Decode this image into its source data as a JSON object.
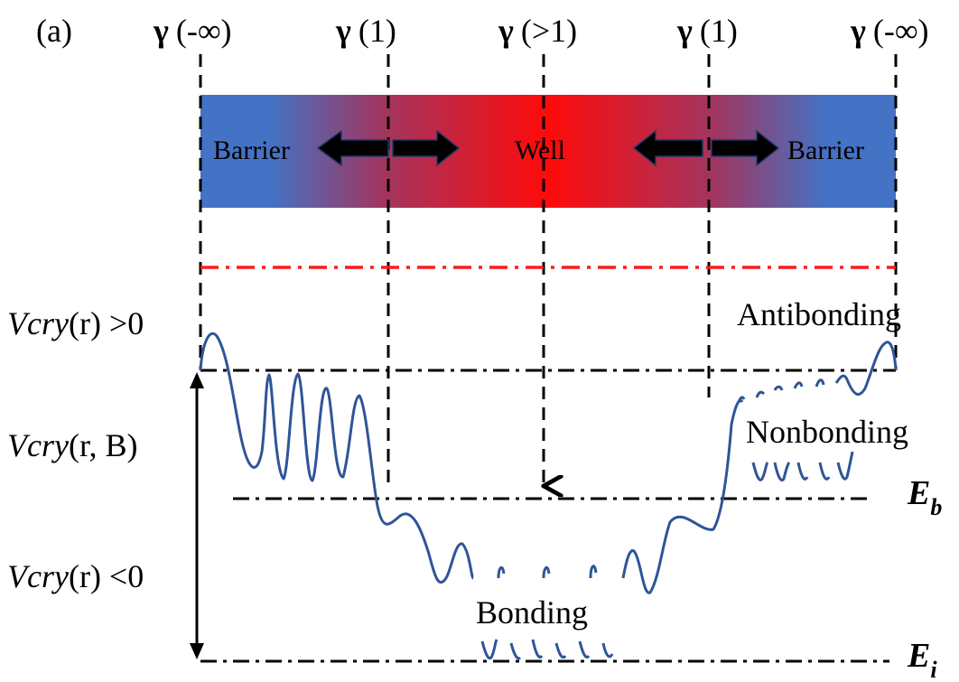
{
  "panel_label": "(a)",
  "gamma_symbol": "γ",
  "gamma_labels": [
    {
      "arg": "(-∞)"
    },
    {
      "arg": "(1)"
    },
    {
      "arg": "(>1)"
    },
    {
      "arg": "(1)"
    },
    {
      "arg": "(-∞)"
    }
  ],
  "bar": {
    "left_label": "Barrier",
    "center_label": "Well",
    "right_label": "Barrier",
    "edge_color": "#4472c4",
    "center_color": "#ff0000"
  },
  "left_labels": {
    "top": {
      "italic": "Vcry",
      "plain": "(r) >0"
    },
    "middle": {
      "italic": "Vcry",
      "plain": "(r, B)"
    },
    "bottom": {
      "italic": "Vcry",
      "plain": "(r) <0"
    }
  },
  "region_labels": {
    "antibonding": "Antibonding",
    "nonbonding": "Nonbonding",
    "bonding": "Bonding"
  },
  "energy_labels": {
    "eb": {
      "main": "E",
      "sub": "b"
    },
    "ei": {
      "main": "E",
      "sub": "i"
    }
  },
  "colors": {
    "wave": "#2f5597",
    "red_line": "#ff1a1a"
  }
}
